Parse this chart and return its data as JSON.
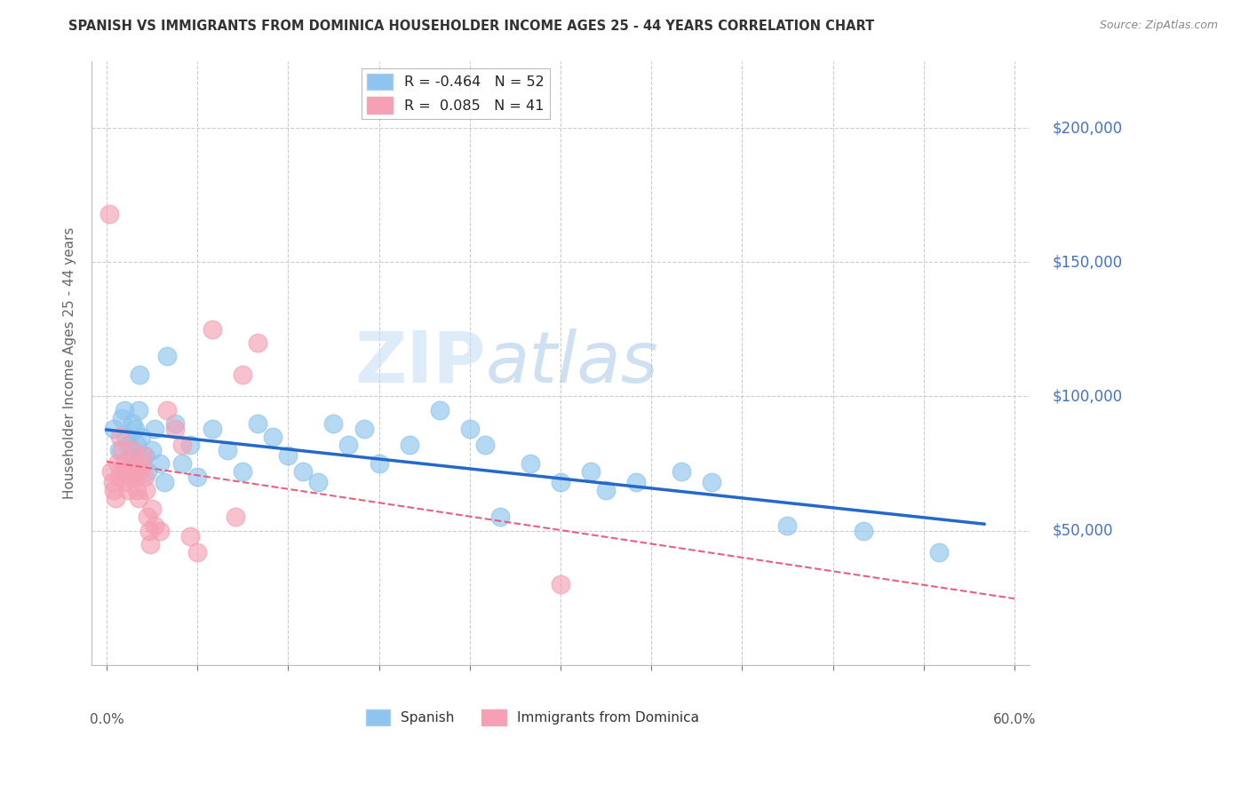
{
  "title": "SPANISH VS IMMIGRANTS FROM DOMINICA HOUSEHOLDER INCOME AGES 25 - 44 YEARS CORRELATION CHART",
  "source": "Source: ZipAtlas.com",
  "ylabel": "Householder Income Ages 25 - 44 years",
  "xlabel_ticks_shown": [
    "0.0%",
    "60.0%"
  ],
  "xlabel_vals_shown": [
    0.0,
    60.0
  ],
  "xlabel_minor_vals": [
    0.0,
    6.0,
    12.0,
    18.0,
    24.0,
    30.0,
    36.0,
    42.0,
    48.0,
    54.0,
    60.0
  ],
  "ytick_labels": [
    "$50,000",
    "$100,000",
    "$150,000",
    "$200,000"
  ],
  "ytick_vals": [
    50000,
    100000,
    150000,
    200000
  ],
  "ylim": [
    0,
    225000
  ],
  "xlim": [
    -1.0,
    61.0
  ],
  "spanish_R": -0.464,
  "spanish_N": 52,
  "dominica_R": 0.085,
  "dominica_N": 41,
  "spanish_color": "#8ec4ed",
  "dominica_color": "#f5a0b5",
  "spanish_line_color": "#2468c8",
  "dominica_line_color": "#e8607a",
  "background_color": "#ffffff",
  "grid_color": "#cccccc",
  "title_color": "#333333",
  "source_color": "#888888",
  "axis_label_color": "#666666",
  "ytick_color": "#4472c4",
  "watermark_zip": "ZIP",
  "watermark_atlas": "atlas",
  "spanish_x": [
    0.5,
    0.8,
    1.0,
    1.2,
    1.3,
    1.5,
    1.6,
    1.7,
    1.8,
    1.9,
    2.0,
    2.1,
    2.2,
    2.3,
    2.5,
    2.7,
    3.0,
    3.2,
    3.5,
    3.8,
    4.0,
    4.5,
    5.0,
    5.5,
    6.0,
    7.0,
    8.0,
    9.0,
    10.0,
    11.0,
    12.0,
    13.0,
    14.0,
    15.0,
    16.0,
    17.0,
    18.0,
    20.0,
    22.0,
    24.0,
    25.0,
    26.0,
    28.0,
    30.0,
    32.0,
    33.0,
    35.0,
    38.0,
    40.0,
    45.0,
    50.0,
    55.0
  ],
  "spanish_y": [
    88000,
    80000,
    92000,
    95000,
    85000,
    82000,
    78000,
    90000,
    75000,
    88000,
    82000,
    95000,
    108000,
    85000,
    78000,
    72000,
    80000,
    88000,
    75000,
    68000,
    115000,
    90000,
    75000,
    82000,
    70000,
    88000,
    80000,
    72000,
    90000,
    85000,
    78000,
    72000,
    68000,
    90000,
    82000,
    88000,
    75000,
    82000,
    95000,
    88000,
    82000,
    55000,
    75000,
    68000,
    72000,
    65000,
    68000,
    72000,
    68000,
    52000,
    50000,
    42000
  ],
  "dominica_x": [
    0.2,
    0.3,
    0.4,
    0.5,
    0.6,
    0.7,
    0.8,
    0.9,
    1.0,
    1.1,
    1.2,
    1.3,
    1.4,
    1.5,
    1.6,
    1.7,
    1.8,
    1.9,
    2.0,
    2.1,
    2.2,
    2.3,
    2.4,
    2.5,
    2.6,
    2.7,
    2.8,
    2.9,
    3.0,
    3.2,
    3.5,
    4.0,
    4.5,
    5.0,
    5.5,
    6.0,
    7.0,
    8.5,
    9.0,
    10.0,
    30.0
  ],
  "dominica_y": [
    168000,
    72000,
    68000,
    65000,
    62000,
    75000,
    70000,
    85000,
    80000,
    75000,
    72000,
    68000,
    65000,
    72000,
    70000,
    80000,
    75000,
    70000,
    65000,
    62000,
    72000,
    75000,
    78000,
    70000,
    65000,
    55000,
    50000,
    45000,
    58000,
    52000,
    50000,
    95000,
    88000,
    82000,
    48000,
    42000,
    125000,
    55000,
    108000,
    120000,
    30000
  ]
}
